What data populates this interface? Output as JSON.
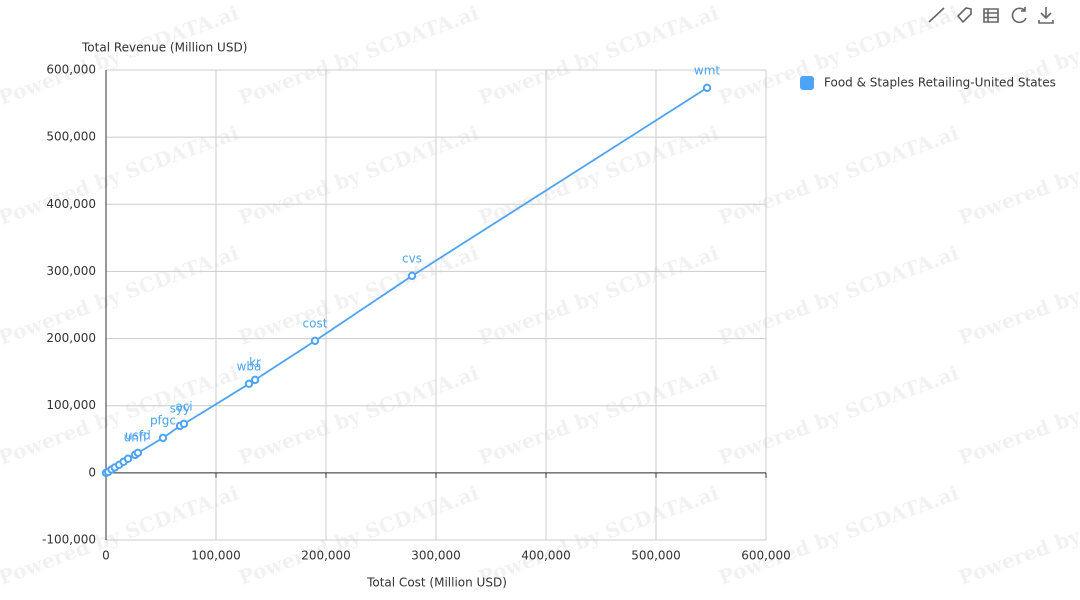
{
  "chart_data": {
    "type": "line",
    "x_label": "Total Cost (Million USD)",
    "y_label": "Total Revenue (Million USD)",
    "watermark": "Powered by SCDATA.ai",
    "x": [
      0,
      2000,
      5000,
      8000,
      12000,
      16000,
      20000,
      26400,
      29000,
      51800,
      67300,
      70900,
      130000,
      135500,
      190000,
      278200,
      546400
    ],
    "series": [
      {
        "name": "Food & Staples Retailing-United States",
        "color": "#4da3f5",
        "values": [
          0,
          1500,
          5000,
          8000,
          12000,
          16500,
          21000,
          26800,
          29800,
          52100,
          70000,
          73000,
          132600,
          138500,
          196600,
          293400,
          573400
        ],
        "point_labels": [
          null,
          null,
          null,
          null,
          null,
          null,
          null,
          "unfi",
          "usfd",
          "pfgc",
          "syy",
          "aci",
          "wba",
          "kr",
          "cost",
          "cvs",
          "wmt"
        ]
      }
    ],
    "xlim": [
      0,
      600000
    ],
    "ylim": [
      -100000,
      600000
    ],
    "xticks": [
      0,
      {
        "value": 100000,
        "label": "100,000"
      },
      {
        "value": 200000,
        "label": "200,000"
      },
      {
        "value": 300000,
        "label": "300,000"
      },
      {
        "value": 400000,
        "label": "400,000"
      },
      {
        "value": 500000,
        "label": "500,000"
      },
      {
        "value": 600000,
        "label": "600,000"
      }
    ],
    "yticks": [
      {
        "value": -100000,
        "label": "-100,000"
      },
      0,
      {
        "value": 100000,
        "label": "100,000"
      },
      {
        "value": 200000,
        "label": "200,000"
      },
      {
        "value": 300000,
        "label": "300,000"
      },
      {
        "value": 400000,
        "label": "400,000"
      },
      {
        "value": 500000,
        "label": "500,000"
      },
      {
        "value": 600000,
        "label": "600,000"
      }
    ],
    "grid": true,
    "legend": "top-right"
  }
}
